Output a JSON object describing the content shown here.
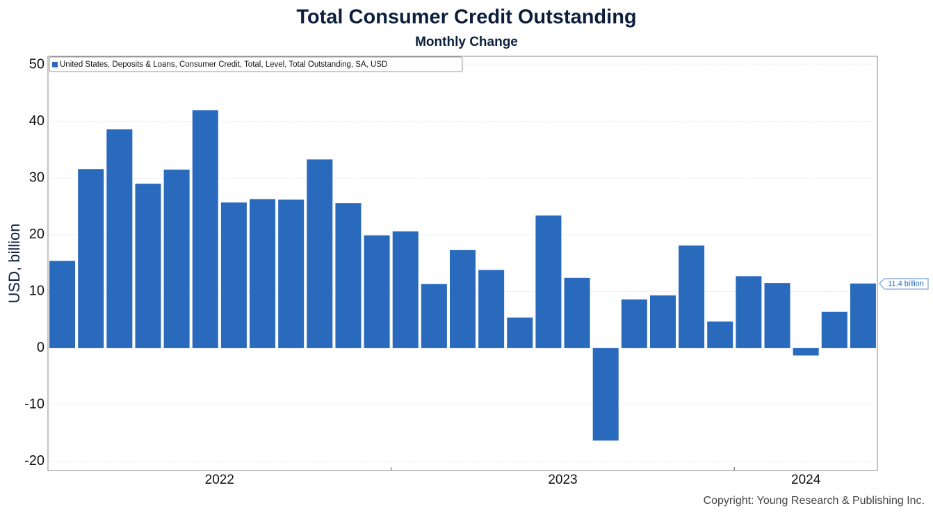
{
  "chart_data": {
    "type": "bar",
    "title": "Total Consumer Credit Outstanding",
    "subtitle": "Monthly Change",
    "y_axis_label": "USD, billion",
    "legend": "United States, Deposits & Loans, Consumer Credit, Total, Level, Total Outstanding, SA, USD",
    "legend_position": "upper left",
    "copyright": "Copyright: Young Research & Publishing Inc.",
    "color": "#2a6abd",
    "categories": [
      "2022",
      null,
      null,
      null,
      null,
      null,
      null,
      null,
      null,
      null,
      null,
      null,
      "2023",
      null,
      null,
      null,
      null,
      null,
      null,
      null,
      null,
      null,
      null,
      null,
      "2024",
      null,
      null,
      null,
      null
    ],
    "values": [
      15.4,
      31.6,
      38.6,
      29.0,
      31.5,
      42.0,
      25.7,
      26.3,
      26.2,
      33.3,
      25.6,
      19.9,
      20.6,
      11.3,
      17.3,
      13.8,
      5.4,
      23.4,
      12.4,
      -16.3,
      8.6,
      9.3,
      18.1,
      4.7,
      12.7,
      11.5,
      -1.3,
      6.4,
      11.4
    ],
    "value_labels": [
      null,
      null,
      null,
      null,
      null,
      null,
      null,
      null,
      null,
      null,
      null,
      null,
      null,
      null,
      null,
      null,
      null,
      null,
      null,
      null,
      null,
      null,
      null,
      null,
      null,
      null,
      null,
      null,
      "11.4 billion"
    ],
    "ylim": [
      -21.6,
      51.5
    ],
    "yticks": [
      -20,
      -10,
      0,
      10,
      20,
      30,
      40,
      50
    ],
    "grid": true
  }
}
